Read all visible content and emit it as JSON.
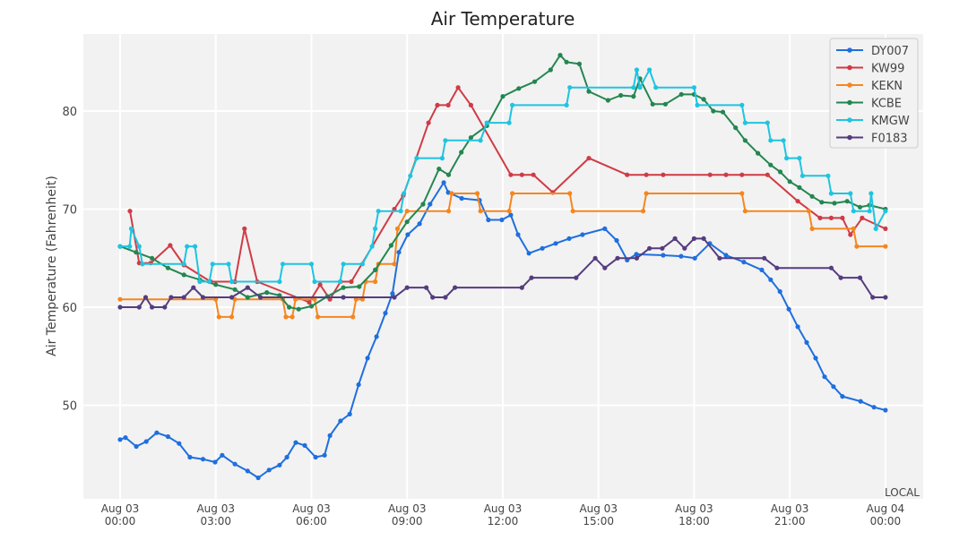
{
  "chart_data": {
    "type": "line",
    "title": "Air Temperature",
    "xlabel": "",
    "ylabel": "Air Temperature (Fahrenheit)",
    "x_unit_note": "LOCAL",
    "xlim_hours": [
      0,
      24
    ],
    "ylim": [
      40.4,
      87.9
    ],
    "grid": true,
    "legend_position": "top-right",
    "x_ticks": [
      {
        "hour": 0,
        "line1": "Aug 03",
        "line2": "00:00"
      },
      {
        "hour": 3,
        "line1": "Aug 03",
        "line2": "03:00"
      },
      {
        "hour": 6,
        "line1": "Aug 03",
        "line2": "06:00"
      },
      {
        "hour": 9,
        "line1": "Aug 03",
        "line2": "09:00"
      },
      {
        "hour": 12,
        "line1": "Aug 03",
        "line2": "12:00"
      },
      {
        "hour": 15,
        "line1": "Aug 03",
        "line2": "15:00"
      },
      {
        "hour": 18,
        "line1": "Aug 03",
        "line2": "18:00"
      },
      {
        "hour": 21,
        "line1": "Aug 03",
        "line2": "21:00"
      },
      {
        "hour": 24,
        "line1": "Aug 04",
        "line2": "00:00"
      }
    ],
    "y_ticks": [
      50,
      60,
      70,
      80
    ],
    "series": [
      {
        "name": "DY007",
        "color": "#1f6fde",
        "points": [
          [
            0,
            46.5
          ],
          [
            0.17,
            46.7
          ],
          [
            0.51,
            45.8
          ],
          [
            0.82,
            46.3
          ],
          [
            1.15,
            47.2
          ],
          [
            1.5,
            46.8
          ],
          [
            1.85,
            46.1
          ],
          [
            2.19,
            44.7
          ],
          [
            2.6,
            44.5
          ],
          [
            2.98,
            44.2
          ],
          [
            3.2,
            44.9
          ],
          [
            3.6,
            44.0
          ],
          [
            4.0,
            43.3
          ],
          [
            4.33,
            42.6
          ],
          [
            4.67,
            43.4
          ],
          [
            5.0,
            43.9
          ],
          [
            5.23,
            44.7
          ],
          [
            5.51,
            46.2
          ],
          [
            5.79,
            45.9
          ],
          [
            6.13,
            44.7
          ],
          [
            6.41,
            44.9
          ],
          [
            6.58,
            46.9
          ],
          [
            6.91,
            48.4
          ],
          [
            7.2,
            49.1
          ],
          [
            7.48,
            52.1
          ],
          [
            7.76,
            54.8
          ],
          [
            8.04,
            57.0
          ],
          [
            8.32,
            59.4
          ],
          [
            8.54,
            61.4
          ],
          [
            8.74,
            65.6
          ],
          [
            9.02,
            67.4
          ],
          [
            9.39,
            68.5
          ],
          [
            9.72,
            70.5
          ],
          [
            10.15,
            72.7
          ],
          [
            10.29,
            71.7
          ],
          [
            10.71,
            71.1
          ],
          [
            11.27,
            70.9
          ],
          [
            11.55,
            68.9
          ],
          [
            11.97,
            68.9
          ],
          [
            12.25,
            69.4
          ],
          [
            12.48,
            67.4
          ],
          [
            12.82,
            65.5
          ],
          [
            13.24,
            66.0
          ],
          [
            13.66,
            66.5
          ],
          [
            14.08,
            67.0
          ],
          [
            14.5,
            67.4
          ],
          [
            15.2,
            68.0
          ],
          [
            15.57,
            66.8
          ],
          [
            15.9,
            64.8
          ],
          [
            16.19,
            65.4
          ],
          [
            17.03,
            65.3
          ],
          [
            17.59,
            65.2
          ],
          [
            18.02,
            65.0
          ],
          [
            18.49,
            66.5
          ],
          [
            19.0,
            65.3
          ],
          [
            19.56,
            64.6
          ],
          [
            20.12,
            63.8
          ],
          [
            20.4,
            62.8
          ],
          [
            20.69,
            61.6
          ],
          [
            20.97,
            59.8
          ],
          [
            21.25,
            58.0
          ],
          [
            21.53,
            56.4
          ],
          [
            21.81,
            54.8
          ],
          [
            22.09,
            52.9
          ],
          [
            22.37,
            51.9
          ],
          [
            22.65,
            50.9
          ],
          [
            23.22,
            50.4
          ],
          [
            23.64,
            49.8
          ],
          [
            24,
            49.5
          ]
        ]
      },
      {
        "name": "KW99",
        "color": "#d03b45",
        "points": [
          [
            0.31,
            69.8
          ],
          [
            0.6,
            64.5
          ],
          [
            0.96,
            64.5
          ],
          [
            1.57,
            66.3
          ],
          [
            2.0,
            64.3
          ],
          [
            2.84,
            62.6
          ],
          [
            3.6,
            62.6
          ],
          [
            3.9,
            68.0
          ],
          [
            4.3,
            62.6
          ],
          [
            5.93,
            60.5
          ],
          [
            6.27,
            62.3
          ],
          [
            6.58,
            60.8
          ],
          [
            6.91,
            62.6
          ],
          [
            7.25,
            62.6
          ],
          [
            8.6,
            70.0
          ],
          [
            8.88,
            71.4
          ],
          [
            9.67,
            78.8
          ],
          [
            9.95,
            80.6
          ],
          [
            10.29,
            80.6
          ],
          [
            10.6,
            82.4
          ],
          [
            11.0,
            80.6
          ],
          [
            12.25,
            73.5
          ],
          [
            12.6,
            73.5
          ],
          [
            12.96,
            73.5
          ],
          [
            13.57,
            71.7
          ],
          [
            14.7,
            75.2
          ],
          [
            15.9,
            73.5
          ],
          [
            16.5,
            73.5
          ],
          [
            17.03,
            73.5
          ],
          [
            18.5,
            73.5
          ],
          [
            19.0,
            73.5
          ],
          [
            19.5,
            73.5
          ],
          [
            20.3,
            73.5
          ],
          [
            21.25,
            70.8
          ],
          [
            21.95,
            69.1
          ],
          [
            22.3,
            69.1
          ],
          [
            22.65,
            69.1
          ],
          [
            22.9,
            67.4
          ],
          [
            23.27,
            69.1
          ],
          [
            24,
            68.0
          ]
        ]
      },
      {
        "name": "KEKN",
        "color": "#f5861f",
        "points": [
          [
            0,
            60.8
          ],
          [
            3.0,
            60.8
          ],
          [
            3.1,
            59
          ],
          [
            3.5,
            59
          ],
          [
            3.6,
            60.8
          ],
          [
            5.1,
            60.8
          ],
          [
            5.2,
            59
          ],
          [
            5.4,
            59
          ],
          [
            5.5,
            60.8
          ],
          [
            6.1,
            60.8
          ],
          [
            6.2,
            59
          ],
          [
            7.3,
            59
          ],
          [
            7.4,
            60.8
          ],
          [
            7.6,
            60.8
          ],
          [
            7.7,
            62.6
          ],
          [
            8.0,
            62.6
          ],
          [
            8.1,
            64.4
          ],
          [
            8.6,
            64.4
          ],
          [
            8.7,
            68
          ],
          [
            9.0,
            69.8
          ],
          [
            10.3,
            69.8
          ],
          [
            10.4,
            71.6
          ],
          [
            11.2,
            71.6
          ],
          [
            11.3,
            69.8
          ],
          [
            12.2,
            69.8
          ],
          [
            12.3,
            71.6
          ],
          [
            14.1,
            71.6
          ],
          [
            14.2,
            69.8
          ],
          [
            16.4,
            69.8
          ],
          [
            16.5,
            71.6
          ],
          [
            19.5,
            71.6
          ],
          [
            19.6,
            69.8
          ],
          [
            21.6,
            69.8
          ],
          [
            21.7,
            68
          ],
          [
            23.0,
            68
          ],
          [
            23.1,
            66.2
          ],
          [
            24,
            66.2
          ]
        ]
      },
      {
        "name": "KCBE",
        "color": "#238650",
        "points": [
          [
            0,
            66.2
          ],
          [
            0.5,
            65.6
          ],
          [
            1,
            65.0
          ],
          [
            1.5,
            64.0
          ],
          [
            2,
            63.3
          ],
          [
            2.5,
            62.8
          ],
          [
            3,
            62.3
          ],
          [
            3.6,
            61.8
          ],
          [
            4,
            61.0
          ],
          [
            4.6,
            61.5
          ],
          [
            5,
            61.2
          ],
          [
            5.3,
            60.0
          ],
          [
            5.6,
            59.8
          ],
          [
            6,
            60.1
          ],
          [
            6.5,
            61.1
          ],
          [
            7,
            62.0
          ],
          [
            7.5,
            62.1
          ],
          [
            8,
            63.8
          ],
          [
            8.5,
            66.3
          ],
          [
            9,
            68.7
          ],
          [
            9.5,
            70.5
          ],
          [
            10,
            74.1
          ],
          [
            10.3,
            73.5
          ],
          [
            10.7,
            75.8
          ],
          [
            11,
            77.3
          ],
          [
            11.5,
            78.5
          ],
          [
            12,
            81.5
          ],
          [
            12.5,
            82.3
          ],
          [
            13,
            83.0
          ],
          [
            13.5,
            84.2
          ],
          [
            13.8,
            85.7
          ],
          [
            14,
            85.0
          ],
          [
            14.4,
            84.8
          ],
          [
            14.7,
            82.0
          ],
          [
            15.3,
            81.1
          ],
          [
            15.7,
            81.6
          ],
          [
            16.1,
            81.5
          ],
          [
            16.3,
            83.3
          ],
          [
            16.7,
            80.7
          ],
          [
            17.1,
            80.7
          ],
          [
            17.6,
            81.7
          ],
          [
            18.0,
            81.7
          ],
          [
            18.3,
            81.2
          ],
          [
            18.6,
            80.0
          ],
          [
            18.9,
            79.9
          ],
          [
            19.3,
            78.3
          ],
          [
            19.6,
            77.0
          ],
          [
            20.0,
            75.7
          ],
          [
            20.4,
            74.5
          ],
          [
            20.7,
            73.8
          ],
          [
            21.0,
            72.8
          ],
          [
            21.3,
            72.2
          ],
          [
            21.7,
            71.3
          ],
          [
            22.0,
            70.7
          ],
          [
            22.4,
            70.6
          ],
          [
            22.8,
            70.8
          ],
          [
            23.2,
            70.2
          ],
          [
            23.5,
            70.4
          ],
          [
            24,
            70.0
          ]
        ]
      },
      {
        "name": "KMGW",
        "color": "#1fc4e0",
        "points": [
          [
            0,
            66.2
          ],
          [
            0.3,
            66.2
          ],
          [
            0.35,
            68
          ],
          [
            0.6,
            66.2
          ],
          [
            0.7,
            64.4
          ],
          [
            2.0,
            64.4
          ],
          [
            2.1,
            66.2
          ],
          [
            2.35,
            66.2
          ],
          [
            2.5,
            62.6
          ],
          [
            2.8,
            62.6
          ],
          [
            2.9,
            64.4
          ],
          [
            3.4,
            64.4
          ],
          [
            3.5,
            62.6
          ],
          [
            5.0,
            62.6
          ],
          [
            5.1,
            64.4
          ],
          [
            6.0,
            64.4
          ],
          [
            6.1,
            62.6
          ],
          [
            6.9,
            62.6
          ],
          [
            7.0,
            64.4
          ],
          [
            7.6,
            64.4
          ],
          [
            7.9,
            66.2
          ],
          [
            8.0,
            68
          ],
          [
            8.1,
            69.8
          ],
          [
            8.8,
            69.8
          ],
          [
            8.9,
            71.6
          ],
          [
            9.1,
            73.4
          ],
          [
            9.3,
            75.2
          ],
          [
            10.1,
            75.2
          ],
          [
            10.2,
            77.0
          ],
          [
            11.3,
            77.0
          ],
          [
            11.5,
            78.8
          ],
          [
            12.2,
            78.8
          ],
          [
            12.3,
            80.6
          ],
          [
            14,
            80.6
          ],
          [
            14.1,
            82.4
          ],
          [
            16.1,
            82.4
          ],
          [
            16.2,
            84.2
          ],
          [
            16.3,
            82.4
          ],
          [
            16.6,
            84.2
          ],
          [
            16.8,
            82.4
          ],
          [
            18,
            82.4
          ],
          [
            18.1,
            80.6
          ],
          [
            19.5,
            80.6
          ],
          [
            19.6,
            78.8
          ],
          [
            20.3,
            78.8
          ],
          [
            20.4,
            77.0
          ],
          [
            20.8,
            77.0
          ],
          [
            20.9,
            75.2
          ],
          [
            21.3,
            75.2
          ],
          [
            21.4,
            73.4
          ],
          [
            22.2,
            73.4
          ],
          [
            22.3,
            71.6
          ],
          [
            22.9,
            71.6
          ],
          [
            23.0,
            69.8
          ],
          [
            23.5,
            69.8
          ],
          [
            23.55,
            71.6
          ],
          [
            23.7,
            68
          ],
          [
            24,
            69.8
          ]
        ]
      },
      {
        "name": "F0183",
        "color": "#553c7f",
        "points": [
          [
            0,
            60
          ],
          [
            0.6,
            60
          ],
          [
            0.8,
            61
          ],
          [
            1.0,
            60
          ],
          [
            1.4,
            60
          ],
          [
            1.6,
            61
          ],
          [
            2.0,
            61
          ],
          [
            2.3,
            62
          ],
          [
            2.6,
            61
          ],
          [
            3.5,
            61
          ],
          [
            4.0,
            62
          ],
          [
            4.4,
            61
          ],
          [
            7.0,
            61
          ],
          [
            8.6,
            61
          ],
          [
            9.0,
            62
          ],
          [
            9.6,
            62
          ],
          [
            9.8,
            61
          ],
          [
            10.2,
            61
          ],
          [
            10.5,
            62
          ],
          [
            12.6,
            62
          ],
          [
            12.9,
            63
          ],
          [
            14.3,
            63
          ],
          [
            14.9,
            65
          ],
          [
            15.2,
            64
          ],
          [
            15.6,
            65
          ],
          [
            16.2,
            65
          ],
          [
            16.6,
            66
          ],
          [
            17.0,
            66
          ],
          [
            17.4,
            67
          ],
          [
            17.7,
            66
          ],
          [
            18.0,
            67
          ],
          [
            18.3,
            67
          ],
          [
            18.8,
            65
          ],
          [
            20.2,
            65
          ],
          [
            20.6,
            64
          ],
          [
            22.3,
            64
          ],
          [
            22.6,
            63
          ],
          [
            23.2,
            63
          ],
          [
            23.6,
            61
          ],
          [
            24,
            61
          ]
        ]
      }
    ]
  }
}
